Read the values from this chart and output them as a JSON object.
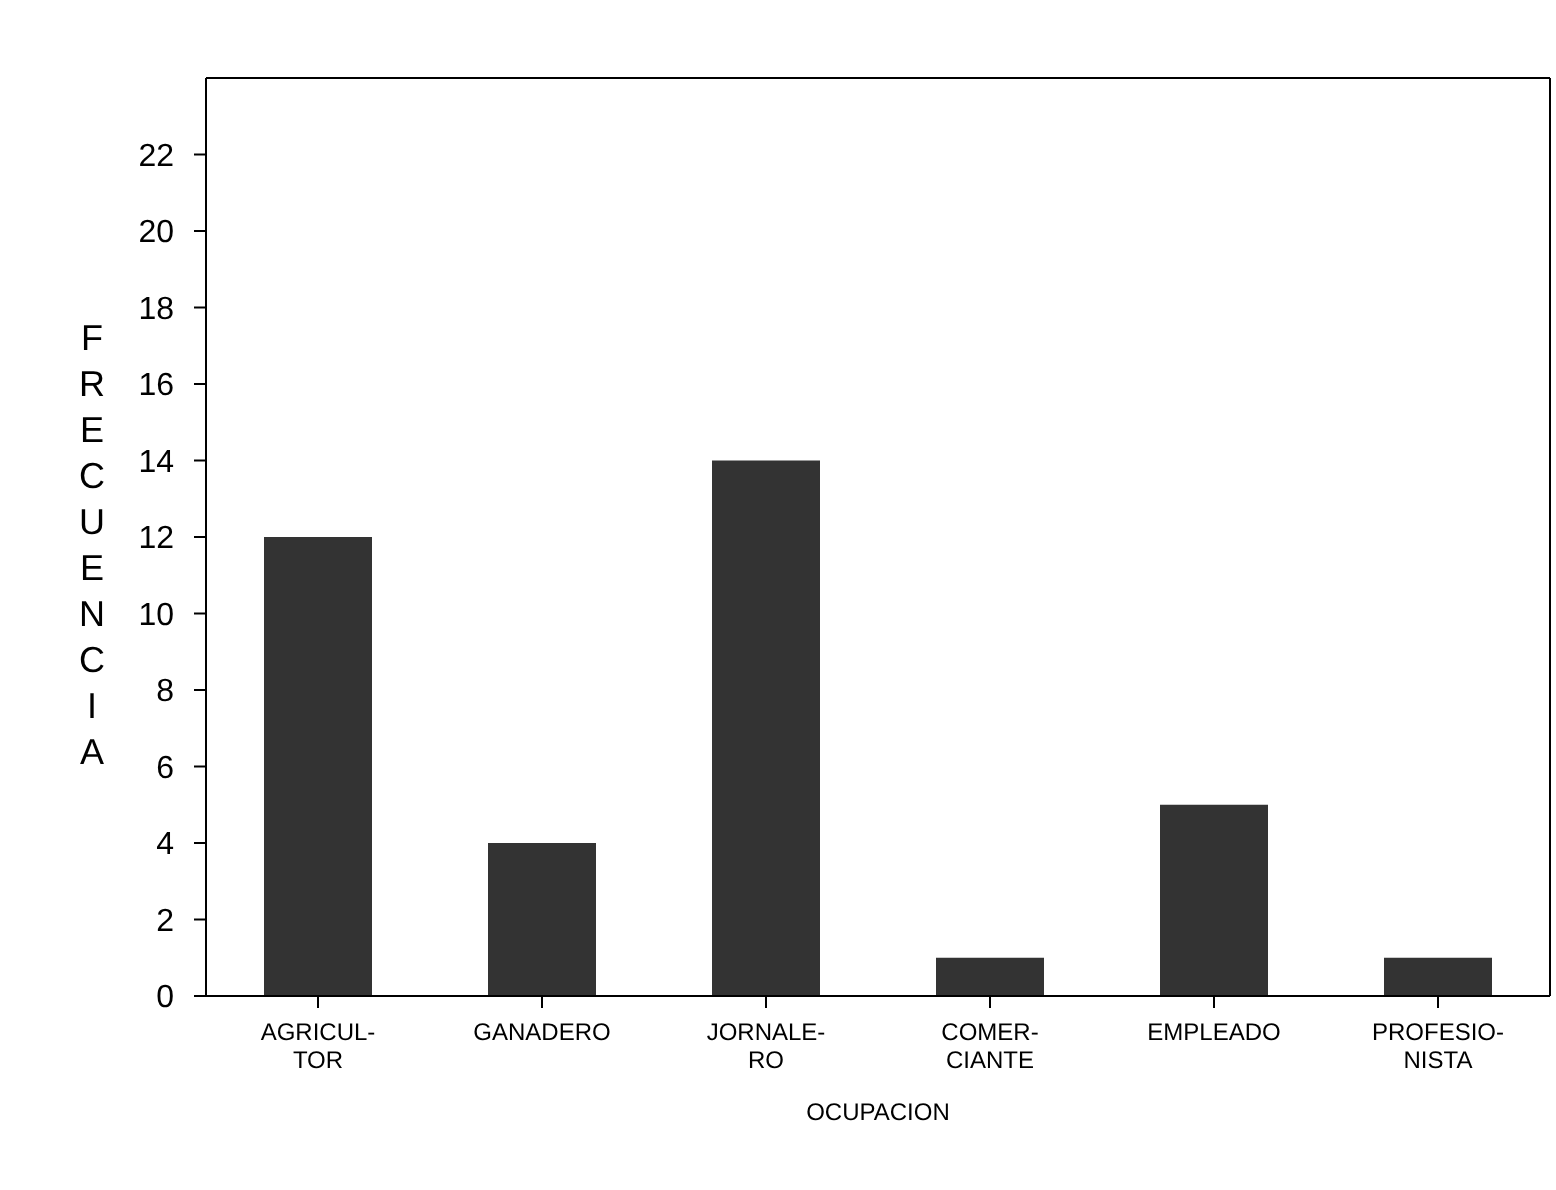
{
  "chart_data": {
    "type": "bar",
    "xlabel": "OCUPACION",
    "ylabel": "FRECUENCIA",
    "categories": [
      "AGRICUL-\nTOR",
      "GANADERO",
      "JORNALE-\nRO",
      "COMER-\nCIANTE",
      "EMPLEADO",
      "PROFESIO-\nNISTA"
    ],
    "values": [
      12,
      4,
      14,
      1,
      5,
      1
    ],
    "color": "#333333",
    "ylim": [
      0,
      24
    ],
    "yticks": [
      0,
      2,
      4,
      6,
      8,
      10,
      12,
      14,
      16,
      18,
      20,
      22
    ],
    "grid": false
  }
}
